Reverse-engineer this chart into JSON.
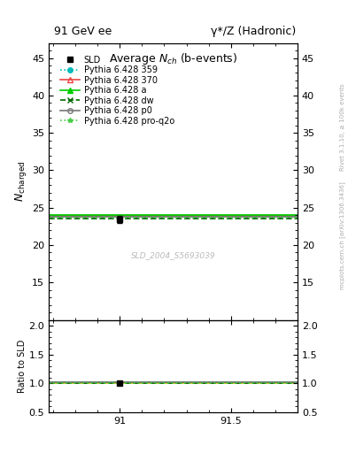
{
  "title_left": "91 GeV ee",
  "title_right": "γ*/Z (Hadronic)",
  "ylabel_main": "N_{charged}",
  "ylabel_ratio": "Ratio to SLD",
  "watermark": "SLD_2004_S5693039",
  "right_label": "mcplots.cern.ch [arXiv:1306.3436]",
  "right_label2": "Rivet 3.1.10, ≥ 100k events",
  "xlim": [
    90.68,
    91.8
  ],
  "xticks": [
    91.0,
    91.5
  ],
  "ylim_main": [
    10,
    47
  ],
  "yticks_main": [
    15,
    20,
    25,
    30,
    35,
    40,
    45
  ],
  "ylim_ratio": [
    0.5,
    2.1
  ],
  "yticks_ratio": [
    0.5,
    1.0,
    1.5,
    2.0
  ],
  "sld_x": 91.0,
  "sld_y": 23.4,
  "sld_y_err": 0.5,
  "lines": [
    {
      "label": "Pythia 6.428 359",
      "y": 23.75,
      "color": "#00BBBB",
      "linestyle": "dotted",
      "marker": "o",
      "mfc": "#00BBBB"
    },
    {
      "label": "Pythia 6.428 370",
      "y": 23.9,
      "color": "#EE4444",
      "linestyle": "solid",
      "marker": "^",
      "mfc": "none"
    },
    {
      "label": "Pythia 6.428 a",
      "y": 24.05,
      "color": "#00CC00",
      "linestyle": "solid",
      "marker": "^",
      "mfc": "#00CC00"
    },
    {
      "label": "Pythia 6.428 dw",
      "y": 23.55,
      "color": "#006600",
      "linestyle": "dashed",
      "marker": "x",
      "mfc": "#006600"
    },
    {
      "label": "Pythia 6.428 p0",
      "y": 23.8,
      "color": "#777777",
      "linestyle": "solid",
      "marker": "o",
      "mfc": "none"
    },
    {
      "label": "Pythia 6.428 pro-q2o",
      "y": 23.65,
      "color": "#44CC44",
      "linestyle": "dotted",
      "marker": "*",
      "mfc": "#44CC44"
    }
  ]
}
